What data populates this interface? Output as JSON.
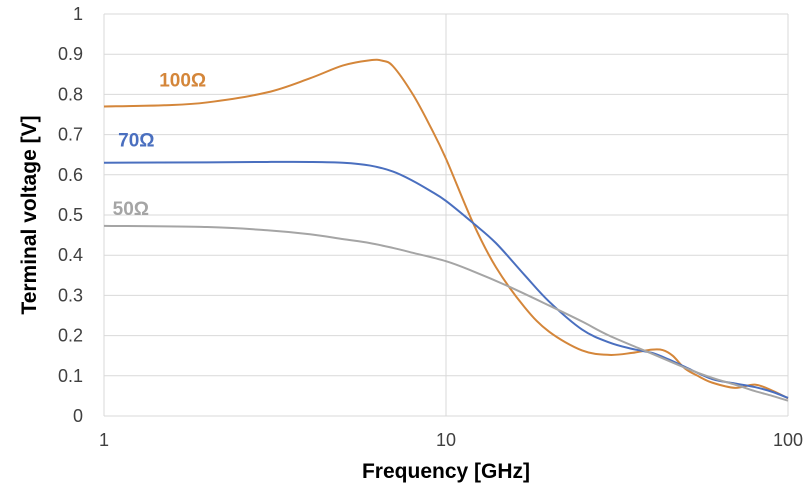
{
  "chart_data": {
    "type": "line",
    "xlabel": "Frequency [GHz]",
    "ylabel": "Terminal voltage [V]",
    "x_scale": "log",
    "xlim": [
      1,
      100
    ],
    "ylim": [
      0,
      1
    ],
    "x_ticks": [
      "1",
      "10",
      "100"
    ],
    "y_ticks": [
      "0",
      "0.1",
      "0.2",
      "0.3",
      "0.4",
      "0.5",
      "0.6",
      "0.7",
      "0.8",
      "0.9",
      "1"
    ],
    "grid": true,
    "series": [
      {
        "name": "100Ω",
        "color": "#d4863a",
        "x": [
          1,
          1.5,
          2,
          3,
          4,
          5,
          6,
          6.5,
          7,
          8,
          9,
          10,
          12,
          14,
          17,
          20,
          25,
          30,
          35,
          40,
          43,
          46,
          50,
          55,
          60,
          70,
          80,
          90,
          100
        ],
        "y": [
          0.77,
          0.773,
          0.78,
          0.805,
          0.84,
          0.872,
          0.885,
          0.884,
          0.87,
          0.8,
          0.72,
          0.64,
          0.48,
          0.37,
          0.27,
          0.21,
          0.163,
          0.152,
          0.157,
          0.165,
          0.164,
          0.15,
          0.118,
          0.098,
          0.083,
          0.07,
          0.078,
          0.063,
          0.044
        ]
      },
      {
        "name": "70Ω",
        "color": "#4a6fbf",
        "x": [
          1,
          2,
          3,
          4,
          5,
          6,
          7,
          8,
          9,
          10,
          12,
          14,
          17,
          20,
          25,
          30,
          35,
          40,
          45,
          50,
          60,
          70,
          80,
          90,
          100
        ],
        "y": [
          0.63,
          0.631,
          0.632,
          0.632,
          0.63,
          0.623,
          0.608,
          0.585,
          0.56,
          0.535,
          0.48,
          0.43,
          0.35,
          0.285,
          0.215,
          0.183,
          0.167,
          0.157,
          0.14,
          0.122,
          0.092,
          0.081,
          0.072,
          0.06,
          0.045
        ]
      },
      {
        "name": "50Ω",
        "color": "#a5a5a5",
        "x": [
          1,
          2,
          3,
          4,
          5,
          6,
          7,
          8,
          10,
          12,
          15,
          20,
          25,
          30,
          40,
          50,
          60,
          70,
          80,
          90,
          100
        ],
        "y": [
          0.473,
          0.47,
          0.462,
          0.452,
          0.44,
          0.43,
          0.418,
          0.406,
          0.385,
          0.36,
          0.325,
          0.275,
          0.235,
          0.2,
          0.155,
          0.12,
          0.095,
          0.078,
          0.062,
          0.05,
          0.038
        ]
      }
    ]
  }
}
